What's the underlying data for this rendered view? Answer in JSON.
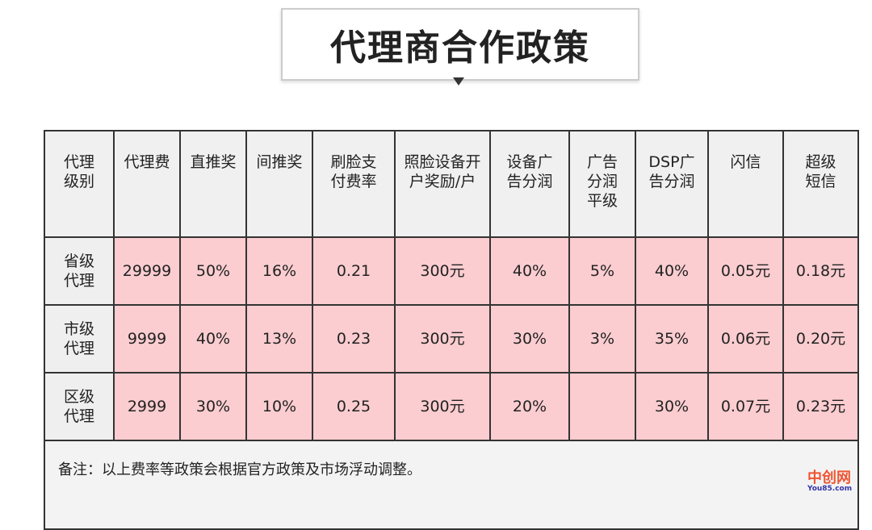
{
  "title": "代理商合作政策",
  "headers": [
    "代理\n级别",
    "代理费",
    "直推奖",
    "间推奖",
    "刷脸支\n付费率",
    "照脸设备开\n户奖励/户",
    "设备广\n告分润",
    "广告\n分润\n平级",
    "DSP广\n告分润",
    "闪信",
    "超级\n短信"
  ],
  "rows": [
    [
      "省级\n代理",
      "29999",
      "50%",
      "16%",
      "0.21",
      "300元",
      "40%",
      "5%",
      "40%",
      "0.05元",
      "0.18元"
    ],
    [
      "市级\n代理",
      "9999",
      "40%",
      "13%",
      "0.23",
      "300元",
      "30%",
      "3%",
      "35%",
      "0.06元",
      "0.20元"
    ],
    [
      "区级\n代理",
      "2999",
      "30%",
      "10%",
      "0.25",
      "300元",
      "20%",
      "",
      "30%",
      "0.07元",
      "0.23元"
    ]
  ],
  "note": "备注：以上费率等政策会根据官方政策及市场浮动调整。",
  "watermark": {
    "text": "中创网",
    "sub": "You85.com"
  }
}
